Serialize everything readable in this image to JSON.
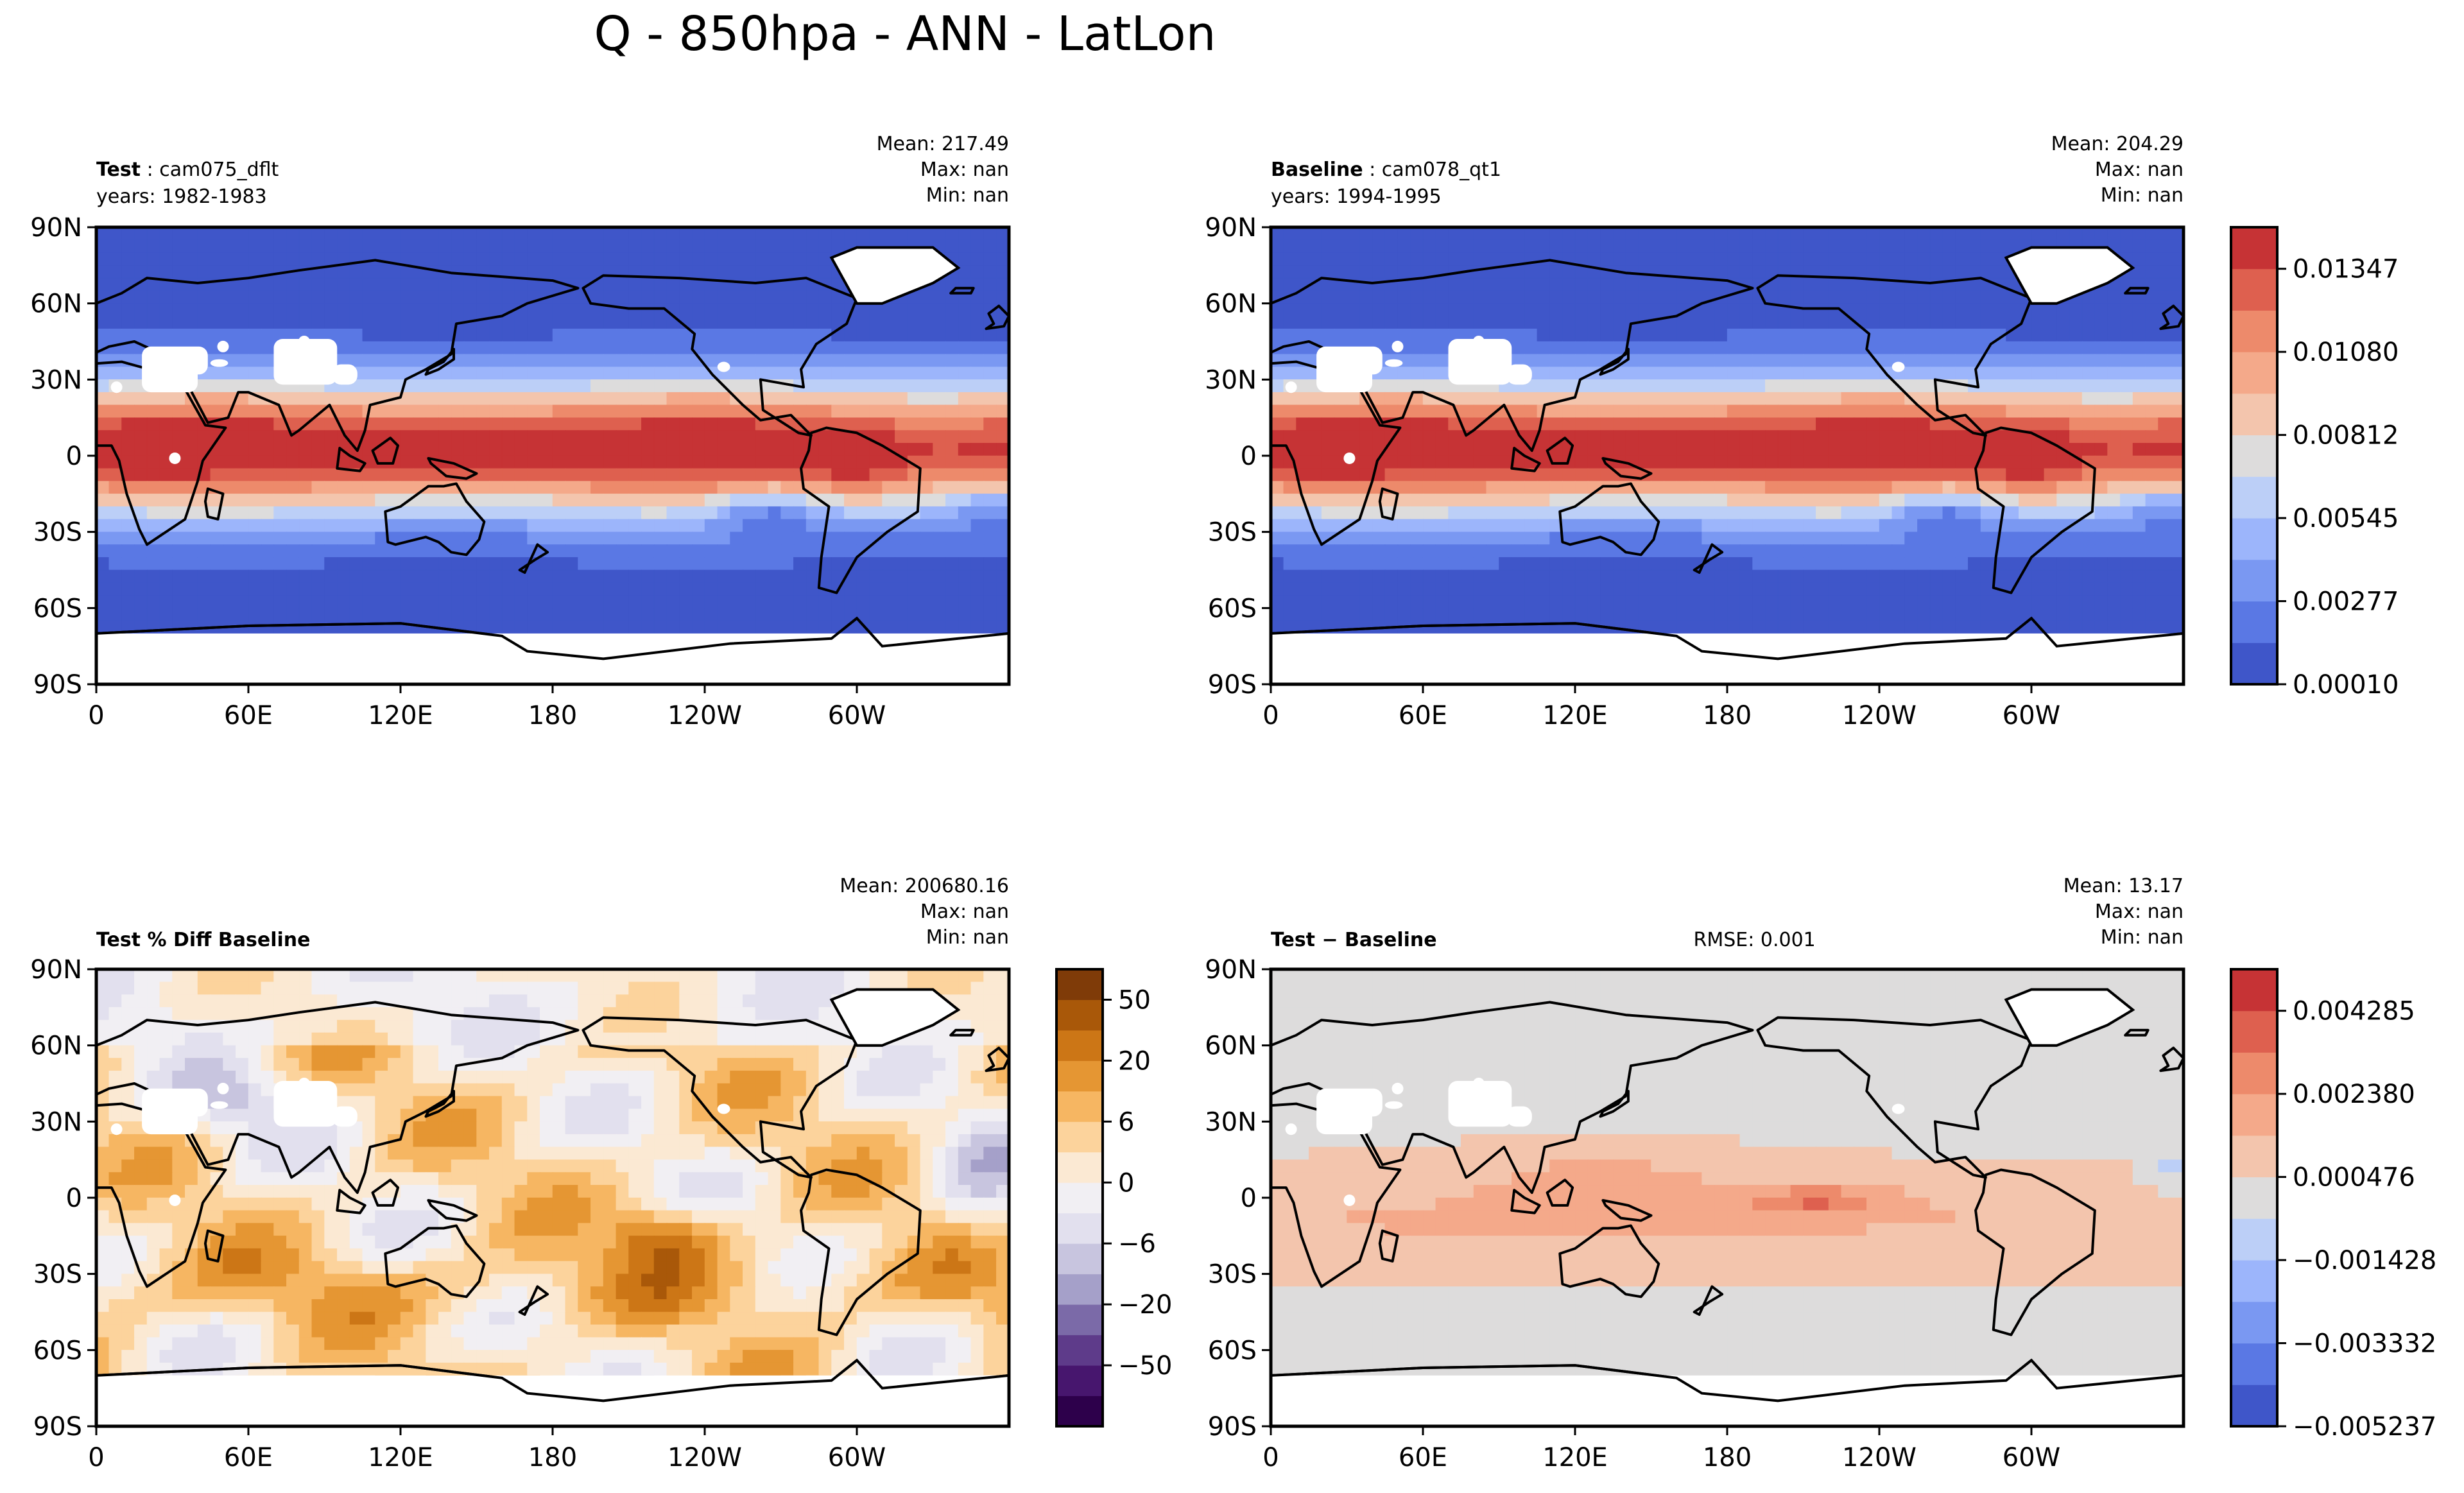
{
  "figure_title": "Q - 850hpa - ANN - LatLon",
  "colors": {
    "frame": "#000000",
    "land_mask": "#ffffff"
  },
  "icons": [
    "coastline-map"
  ],
  "chart_data": [
    {
      "type": "heatmap",
      "panel": "test",
      "label_bold": "Test",
      "label_rest": " : cam075_dflt",
      "years": "years: 1982-1983",
      "stats": {
        "mean": "Mean: 217.49",
        "max": "Max:   nan",
        "min": "Min:   nan"
      },
      "x_ticks": [
        "0",
        "60E",
        "120E",
        "180",
        "120W",
        "60W"
      ],
      "y_ticks": [
        "90N",
        "60N",
        "30N",
        "0",
        "30S",
        "60S",
        "90S"
      ],
      "xlim": [
        0,
        360
      ],
      "ylim": [
        -90,
        90
      ],
      "field": "moist",
      "colorbar": null
    },
    {
      "type": "heatmap",
      "panel": "baseline",
      "label_bold": "Baseline",
      "label_rest": " : cam078_qt1",
      "years": "years: 1994-1995",
      "stats": {
        "mean": "Mean: 204.29",
        "max": "Max:   nan",
        "min": "Min:   nan"
      },
      "x_ticks": [
        "0",
        "60E",
        "120E",
        "180",
        "120W",
        "60W"
      ],
      "y_ticks": [
        "90N",
        "60N",
        "30N",
        "0",
        "30S",
        "60S",
        "90S"
      ],
      "xlim": [
        0,
        360
      ],
      "ylim": [
        -90,
        90
      ],
      "field": "moist",
      "colorbar": {
        "ticks": [
          "0.01347",
          "0.01080",
          "0.00812",
          "0.00545",
          "0.00277",
          "0.00010"
        ],
        "colors": [
          "#3f56c9",
          "#5a78e4",
          "#7a98f2",
          "#9cb5fb",
          "#bccff7",
          "#dddcdc",
          "#f3c5ad",
          "#f4a98a",
          "#ed8a6b",
          "#de604f",
          "#c63335"
        ]
      }
    },
    {
      "type": "heatmap",
      "panel": "percent-diff",
      "label_bold": "Test % Diff Baseline",
      "label_rest": "",
      "years": "",
      "stats": {
        "mean": "Mean: 200680.16",
        "max": "Max:   nan",
        "min": "Min:   nan"
      },
      "x_ticks": [
        "0",
        "60E",
        "120E",
        "180",
        "120W",
        "60W"
      ],
      "y_ticks": [
        "90N",
        "60N",
        "30N",
        "0",
        "30S",
        "60S",
        "90S"
      ],
      "xlim": [
        0,
        360
      ],
      "ylim": [
        -90,
        90
      ],
      "field": "pct",
      "colorbar": {
        "ticks": [
          "50",
          "20",
          "6",
          "0",
          "−6",
          "−20",
          "−50"
        ],
        "colors": [
          "#2d004b",
          "#47166e",
          "#5e3b8a",
          "#7b6aa8",
          "#a5a0c9",
          "#c8c5df",
          "#e2e0ee",
          "#f1eff3",
          "#fbe9d3",
          "#fcd39c",
          "#f6b662",
          "#e59633",
          "#cc7616",
          "#a95809",
          "#7f3b08"
        ]
      }
    },
    {
      "type": "heatmap",
      "panel": "difference",
      "label_bold": "Test − Baseline",
      "label_rest": "",
      "years": "",
      "rmse": "RMSE: 0.001",
      "stats": {
        "mean": "Mean: 13.17",
        "max": "Max:   nan",
        "min": "Min:   nan"
      },
      "x_ticks": [
        "0",
        "60E",
        "120E",
        "180",
        "120W",
        "60W"
      ],
      "y_ticks": [
        "90N",
        "60N",
        "30N",
        "0",
        "30S",
        "60S",
        "90S"
      ],
      "xlim": [
        0,
        360
      ],
      "ylim": [
        -90,
        90
      ],
      "field": "diff",
      "colorbar": {
        "ticks": [
          "0.004285",
          "0.002380",
          "0.000476",
          "−0.001428",
          "−0.003332",
          "−0.005237"
        ],
        "colors": [
          "#3f56c9",
          "#5a78e4",
          "#7a98f2",
          "#9cb5fb",
          "#bccff7",
          "#dddcdc",
          "#f3c5ad",
          "#f4a98a",
          "#ed8a6b",
          "#de604f",
          "#c63335"
        ]
      }
    }
  ]
}
